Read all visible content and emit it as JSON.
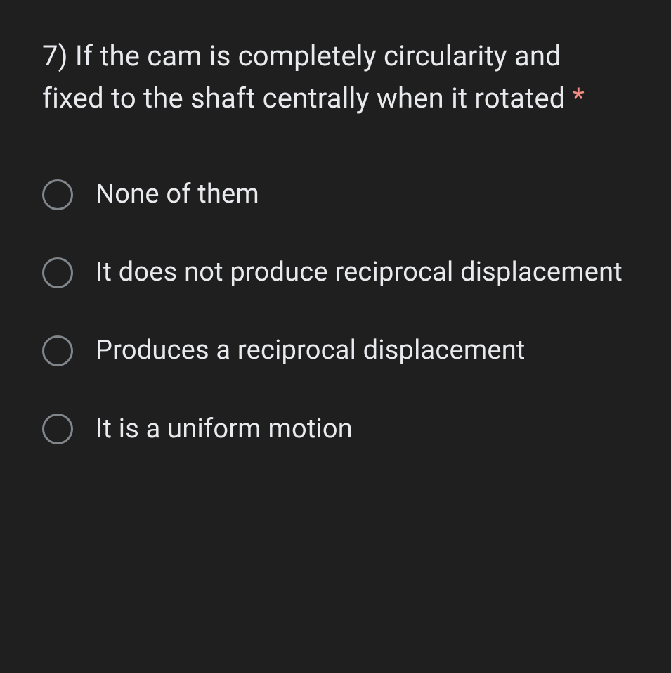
{
  "question": {
    "text": "7) If the cam is completely circularity and fixed to the shaft centrally when it rotated ",
    "required": true,
    "asterisk": "*"
  },
  "options": [
    {
      "label": "None of them",
      "selected": false
    },
    {
      "label": "It does not produce reciprocal displacement",
      "selected": false
    },
    {
      "label": "Produces a reciprocal displacement",
      "selected": false
    },
    {
      "label": "It is a uniform motion",
      "selected": false
    }
  ],
  "colors": {
    "background": "#1f1f1f",
    "text": "#e8eaed",
    "asterisk": "#f28b82",
    "radio_border": "#80868b"
  },
  "typography": {
    "question_fontsize": 40,
    "option_fontsize": 38,
    "font_family": "Google Sans, Roboto, Arial, sans-serif"
  }
}
